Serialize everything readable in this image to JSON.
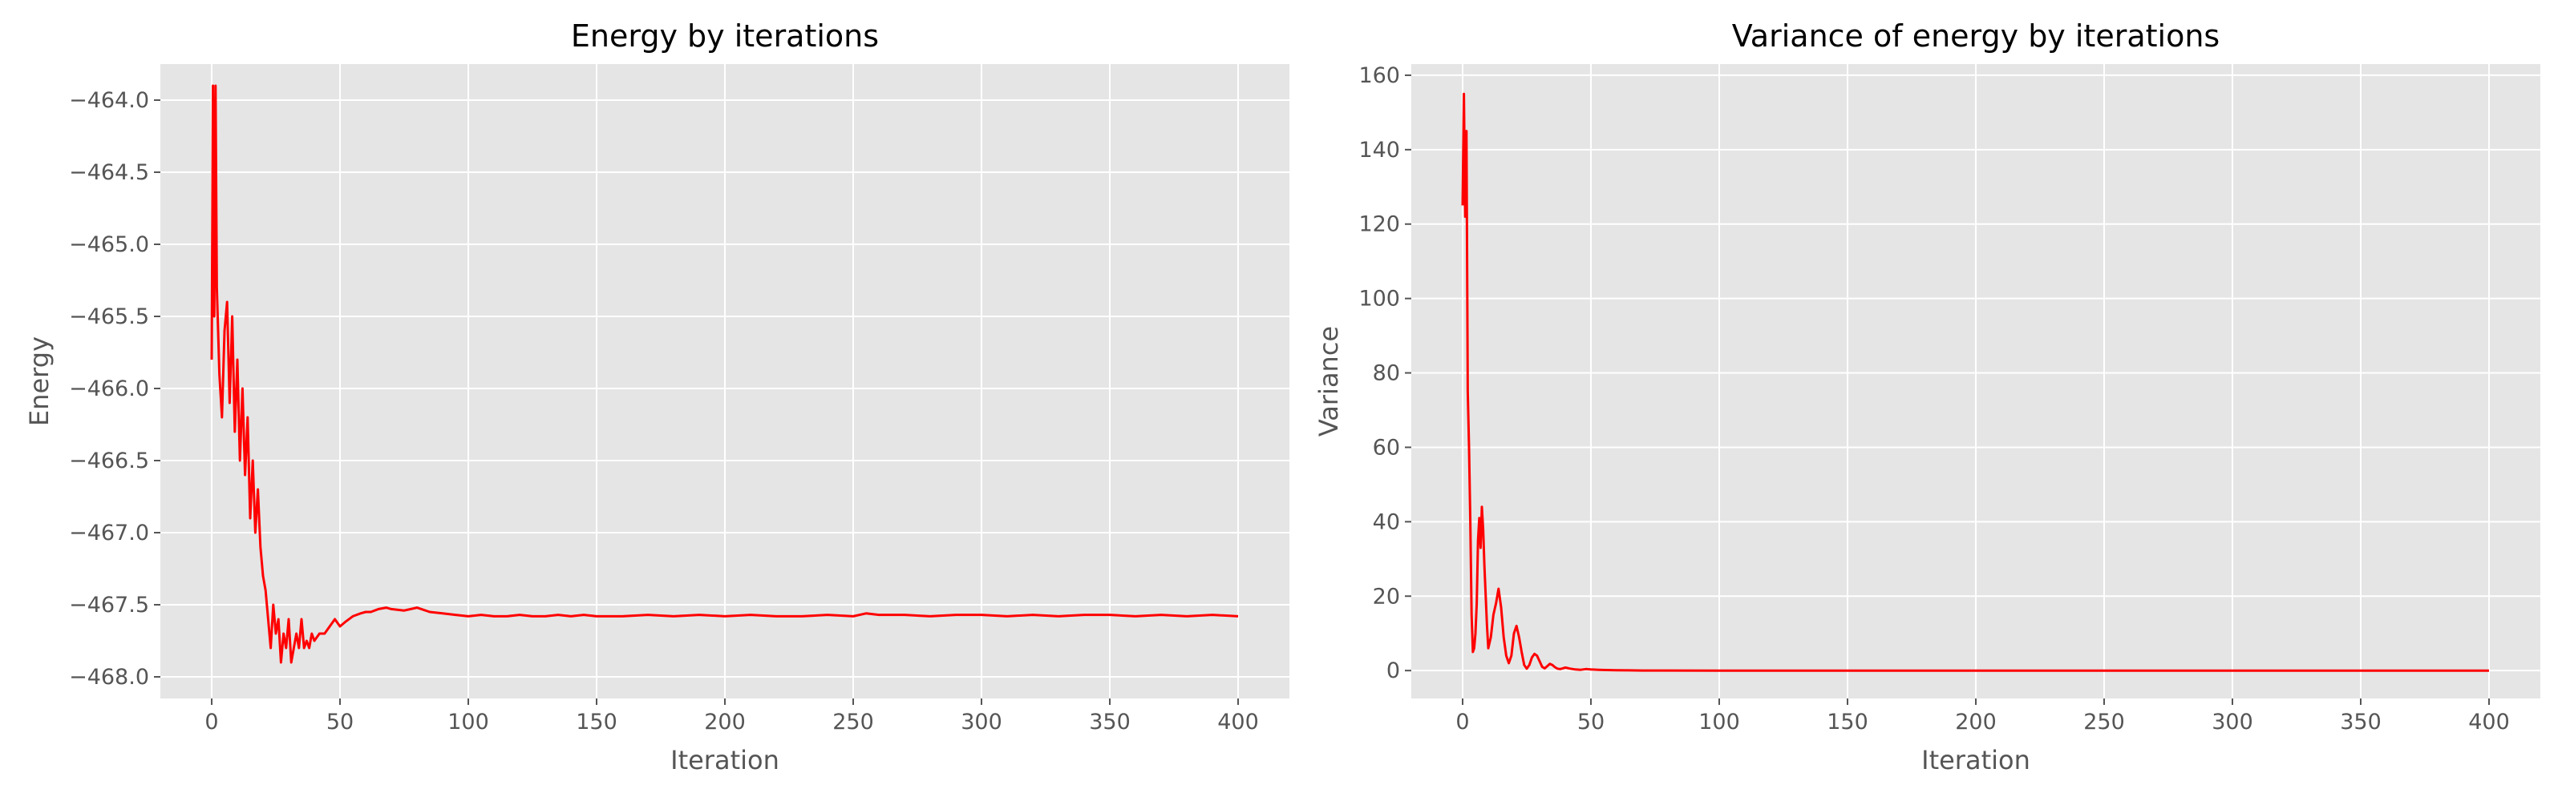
{
  "chart_data": [
    {
      "type": "line",
      "title": "Energy by iterations",
      "xlabel": "Iteration",
      "ylabel": "Energy",
      "xlim": [
        -20,
        420
      ],
      "ylim": [
        -468.15,
        -463.75
      ],
      "xticks": [
        0,
        50,
        100,
        150,
        200,
        250,
        300,
        350,
        400
      ],
      "xtick_labels": [
        "0",
        "50",
        "100",
        "150",
        "200",
        "250",
        "300",
        "350",
        "400"
      ],
      "yticks": [
        -464.0,
        -464.5,
        -465.0,
        -465.5,
        -466.0,
        -466.5,
        -467.0,
        -467.5,
        -468.0
      ],
      "ytick_labels": [
        "−464.0",
        "−464.5",
        "−465.0",
        "−465.5",
        "−466.0",
        "−466.5",
        "−467.0",
        "−467.5",
        "−468.0"
      ],
      "grid": true,
      "series": [
        {
          "color": "#ff0000",
          "x": [
            0,
            0.5,
            1,
            1.5,
            2,
            3,
            4,
            5,
            6,
            7,
            8,
            9,
            10,
            11,
            12,
            13,
            14,
            15,
            16,
            17,
            18,
            19,
            20,
            21,
            22,
            23,
            24,
            25,
            26,
            27,
            28,
            29,
            30,
            31,
            32,
            33,
            34,
            35,
            36,
            37,
            38,
            39,
            40,
            42,
            44,
            46,
            48,
            50,
            52,
            55,
            58,
            60,
            62,
            65,
            68,
            70,
            75,
            80,
            85,
            90,
            95,
            100,
            105,
            110,
            115,
            120,
            125,
            130,
            135,
            140,
            145,
            150,
            160,
            170,
            180,
            190,
            200,
            210,
            220,
            230,
            240,
            250,
            255,
            260,
            270,
            280,
            290,
            300,
            310,
            320,
            330,
            340,
            350,
            360,
            370,
            380,
            390,
            400
          ],
          "y": [
            -465.8,
            -463.9,
            -465.5,
            -463.9,
            -465.3,
            -465.9,
            -466.2,
            -465.6,
            -465.4,
            -466.1,
            -465.5,
            -466.3,
            -465.8,
            -466.5,
            -466.0,
            -466.6,
            -466.2,
            -466.9,
            -466.5,
            -467.0,
            -466.7,
            -467.1,
            -467.3,
            -467.4,
            -467.6,
            -467.8,
            -467.5,
            -467.7,
            -467.6,
            -467.9,
            -467.7,
            -467.8,
            -467.6,
            -467.9,
            -467.8,
            -467.7,
            -467.8,
            -467.6,
            -467.8,
            -467.75,
            -467.8,
            -467.7,
            -467.75,
            -467.7,
            -467.7,
            -467.65,
            -467.6,
            -467.65,
            -467.62,
            -467.58,
            -467.56,
            -467.55,
            -467.55,
            -467.53,
            -467.52,
            -467.53,
            -467.54,
            -467.52,
            -467.55,
            -467.56,
            -467.57,
            -467.58,
            -467.57,
            -467.58,
            -467.58,
            -467.57,
            -467.58,
            -467.58,
            -467.57,
            -467.58,
            -467.57,
            -467.58,
            -467.58,
            -467.57,
            -467.58,
            -467.57,
            -467.58,
            -467.57,
            -467.58,
            -467.58,
            -467.57,
            -467.58,
            -467.56,
            -467.57,
            -467.57,
            -467.58,
            -467.57,
            -467.57,
            -467.58,
            -467.57,
            -467.58,
            -467.57,
            -467.57,
            -467.58,
            -467.57,
            -467.58,
            -467.57,
            -467.58
          ]
        }
      ]
    },
    {
      "type": "line",
      "title": "Variance of energy by iterations",
      "xlabel": "Iteration",
      "ylabel": "Variance",
      "xlim": [
        -20,
        420
      ],
      "ylim": [
        -7.5,
        163
      ],
      "xticks": [
        0,
        50,
        100,
        150,
        200,
        250,
        300,
        350,
        400
      ],
      "xtick_labels": [
        "0",
        "50",
        "100",
        "150",
        "200",
        "250",
        "300",
        "350",
        "400"
      ],
      "yticks": [
        0,
        20,
        40,
        60,
        80,
        100,
        120,
        140,
        160
      ],
      "ytick_labels": [
        "0",
        "20",
        "40",
        "60",
        "80",
        "100",
        "120",
        "140",
        "160"
      ],
      "grid": true,
      "series": [
        {
          "color": "#ff0000",
          "x": [
            0,
            0.5,
            1,
            1.5,
            2,
            2.5,
            3,
            3.5,
            4,
            4.5,
            5,
            5.5,
            6,
            6.5,
            7,
            7.5,
            8,
            8.5,
            9,
            9.5,
            10,
            11,
            12,
            13,
            14,
            15,
            16,
            17,
            18,
            19,
            20,
            21,
            22,
            23,
            24,
            25,
            26,
            27,
            28,
            29,
            30,
            31,
            32,
            33,
            34,
            35,
            36,
            37,
            38,
            39,
            40,
            42,
            44,
            46,
            48,
            50,
            53,
            56,
            60,
            65,
            70,
            80,
            100,
            150,
            200,
            250,
            300,
            350,
            400
          ],
          "y": [
            125,
            155,
            122,
            145,
            75,
            60,
            40,
            15,
            5,
            6,
            10,
            18,
            35,
            41,
            33,
            44,
            38,
            28,
            20,
            12,
            6,
            9,
            15,
            18,
            22,
            17,
            9,
            4,
            2,
            4,
            10,
            12,
            9,
            5,
            1.5,
            0.5,
            1.5,
            3.5,
            4.5,
            4,
            2.5,
            1,
            0.6,
            1.2,
            1.8,
            1.5,
            0.9,
            0.5,
            0.4,
            0.6,
            0.8,
            0.5,
            0.3,
            0.2,
            0.4,
            0.3,
            0.2,
            0.15,
            0.1,
            0.05,
            0.02,
            0.01,
            0,
            0,
            0,
            0,
            0,
            0,
            0
          ]
        }
      ]
    }
  ]
}
